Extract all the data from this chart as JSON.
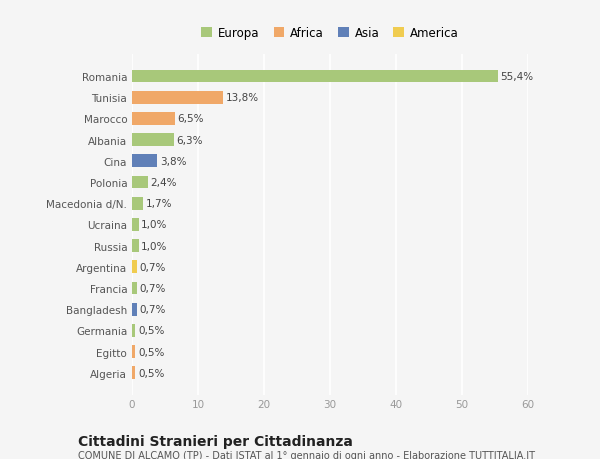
{
  "categories": [
    "Romania",
    "Tunisia",
    "Marocco",
    "Albania",
    "Cina",
    "Polonia",
    "Macedonia d/N.",
    "Ucraina",
    "Russia",
    "Argentina",
    "Francia",
    "Bangladesh",
    "Germania",
    "Egitto",
    "Algeria"
  ],
  "values": [
    55.4,
    13.8,
    6.5,
    6.3,
    3.8,
    2.4,
    1.7,
    1.0,
    1.0,
    0.7,
    0.7,
    0.7,
    0.5,
    0.5,
    0.5
  ],
  "labels": [
    "55,4%",
    "13,8%",
    "6,5%",
    "6,3%",
    "3,8%",
    "2,4%",
    "1,7%",
    "1,0%",
    "1,0%",
    "0,7%",
    "0,7%",
    "0,7%",
    "0,5%",
    "0,5%",
    "0,5%"
  ],
  "colors": [
    "#a8c87a",
    "#f0a868",
    "#f0a868",
    "#a8c87a",
    "#6080b8",
    "#a8c87a",
    "#a8c87a",
    "#a8c87a",
    "#a8c87a",
    "#f0cc50",
    "#a8c87a",
    "#6080b8",
    "#a8c87a",
    "#f0a868",
    "#f0a868"
  ],
  "legend_labels": [
    "Europa",
    "Africa",
    "Asia",
    "America"
  ],
  "legend_colors": [
    "#a8c87a",
    "#f0a868",
    "#6080b8",
    "#f0cc50"
  ],
  "xlim": [
    0,
    60
  ],
  "xticks": [
    0,
    10,
    20,
    30,
    40,
    50,
    60
  ],
  "title": "Cittadini Stranieri per Cittadinanza",
  "subtitle": "COMUNE DI ALCAMO (TP) - Dati ISTAT al 1° gennaio di ogni anno - Elaborazione TUTTITALIA.IT",
  "bg_color": "#f5f5f5",
  "bar_height": 0.6,
  "grid_color": "#ffffff",
  "label_fontsize": 7.5,
  "ytick_fontsize": 7.5,
  "xtick_fontsize": 7.5,
  "title_fontsize": 10,
  "subtitle_fontsize": 7
}
